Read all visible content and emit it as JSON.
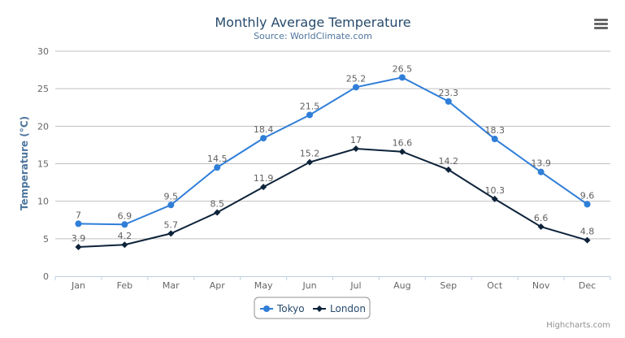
{
  "chart_data": {
    "type": "line",
    "title": "Monthly Average Temperature",
    "subtitle": "Source: WorldClimate.com",
    "xlabel": "",
    "ylabel": "Temperature (°C)",
    "ylim": [
      0,
      30
    ],
    "yticks": [
      0,
      5,
      10,
      15,
      20,
      25,
      30
    ],
    "grid": true,
    "legend_placement": "bottom",
    "categories": [
      "Jan",
      "Feb",
      "Mar",
      "Apr",
      "May",
      "Jun",
      "Jul",
      "Aug",
      "Sep",
      "Oct",
      "Nov",
      "Dec"
    ],
    "series": [
      {
        "name": "Tokyo",
        "color": "#2f7ed8",
        "marker": "circle",
        "values": [
          7.0,
          6.9,
          9.5,
          14.5,
          18.4,
          21.5,
          25.2,
          26.5,
          23.3,
          18.3,
          13.9,
          9.6
        ]
      },
      {
        "name": "London",
        "color": "#0d233a",
        "marker": "diamond",
        "values": [
          3.9,
          4.2,
          5.7,
          8.5,
          11.9,
          15.2,
          17.0,
          16.6,
          14.2,
          10.3,
          6.6,
          4.8
        ]
      }
    ],
    "data_labels": true
  },
  "credits": "Highcharts.com",
  "menu_icon": "hamburger-menu-icon"
}
